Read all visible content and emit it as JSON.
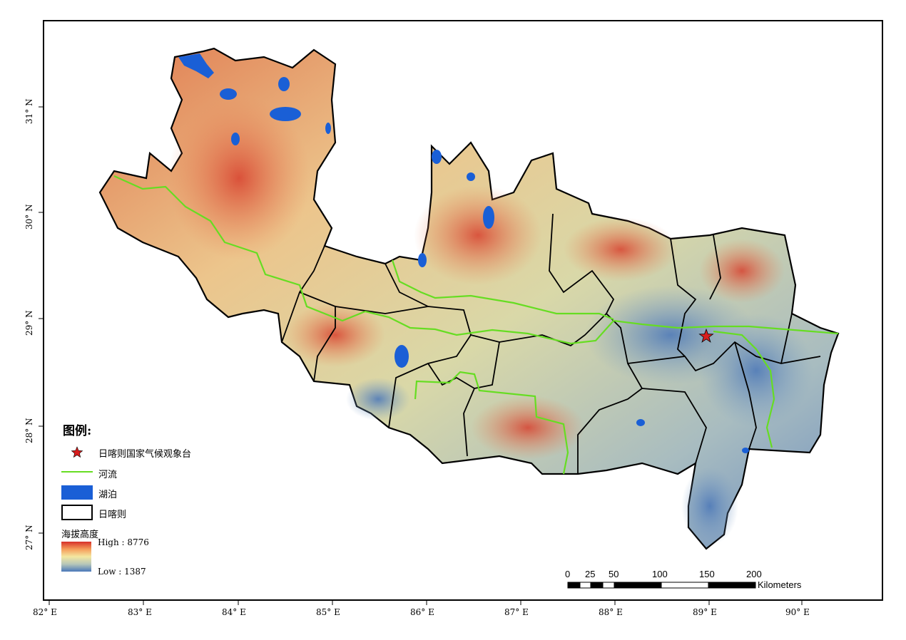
{
  "map": {
    "lon_ticks": [
      "82°  E",
      "83°  E",
      "84°  E",
      "85°  E",
      "86°  E",
      "87°  E",
      "88°  E",
      "89°  E",
      "90°  E"
    ],
    "lat_ticks": [
      "27°  N",
      "28°  N",
      "29°  N",
      "30°  N",
      "31°  N"
    ]
  },
  "legend": {
    "title": "图例:",
    "station": "日喀则国家气候观象台",
    "river": "河流",
    "lake": "湖泊",
    "boundary": "日喀则",
    "elevation_title": "海拔高度",
    "high": "High : 8776",
    "low": "Low : 1387"
  },
  "scalebar": {
    "ticks": [
      "0",
      "25",
      "50",
      "100",
      "150",
      "200"
    ],
    "unit": "Kilometers"
  },
  "colors": {
    "river": "#66dd22",
    "lake": "#1a5fd6",
    "station": "#d81e1e",
    "high": "#d7302a",
    "low": "#4a78b9"
  },
  "icons": {
    "station": "red-star-icon"
  }
}
